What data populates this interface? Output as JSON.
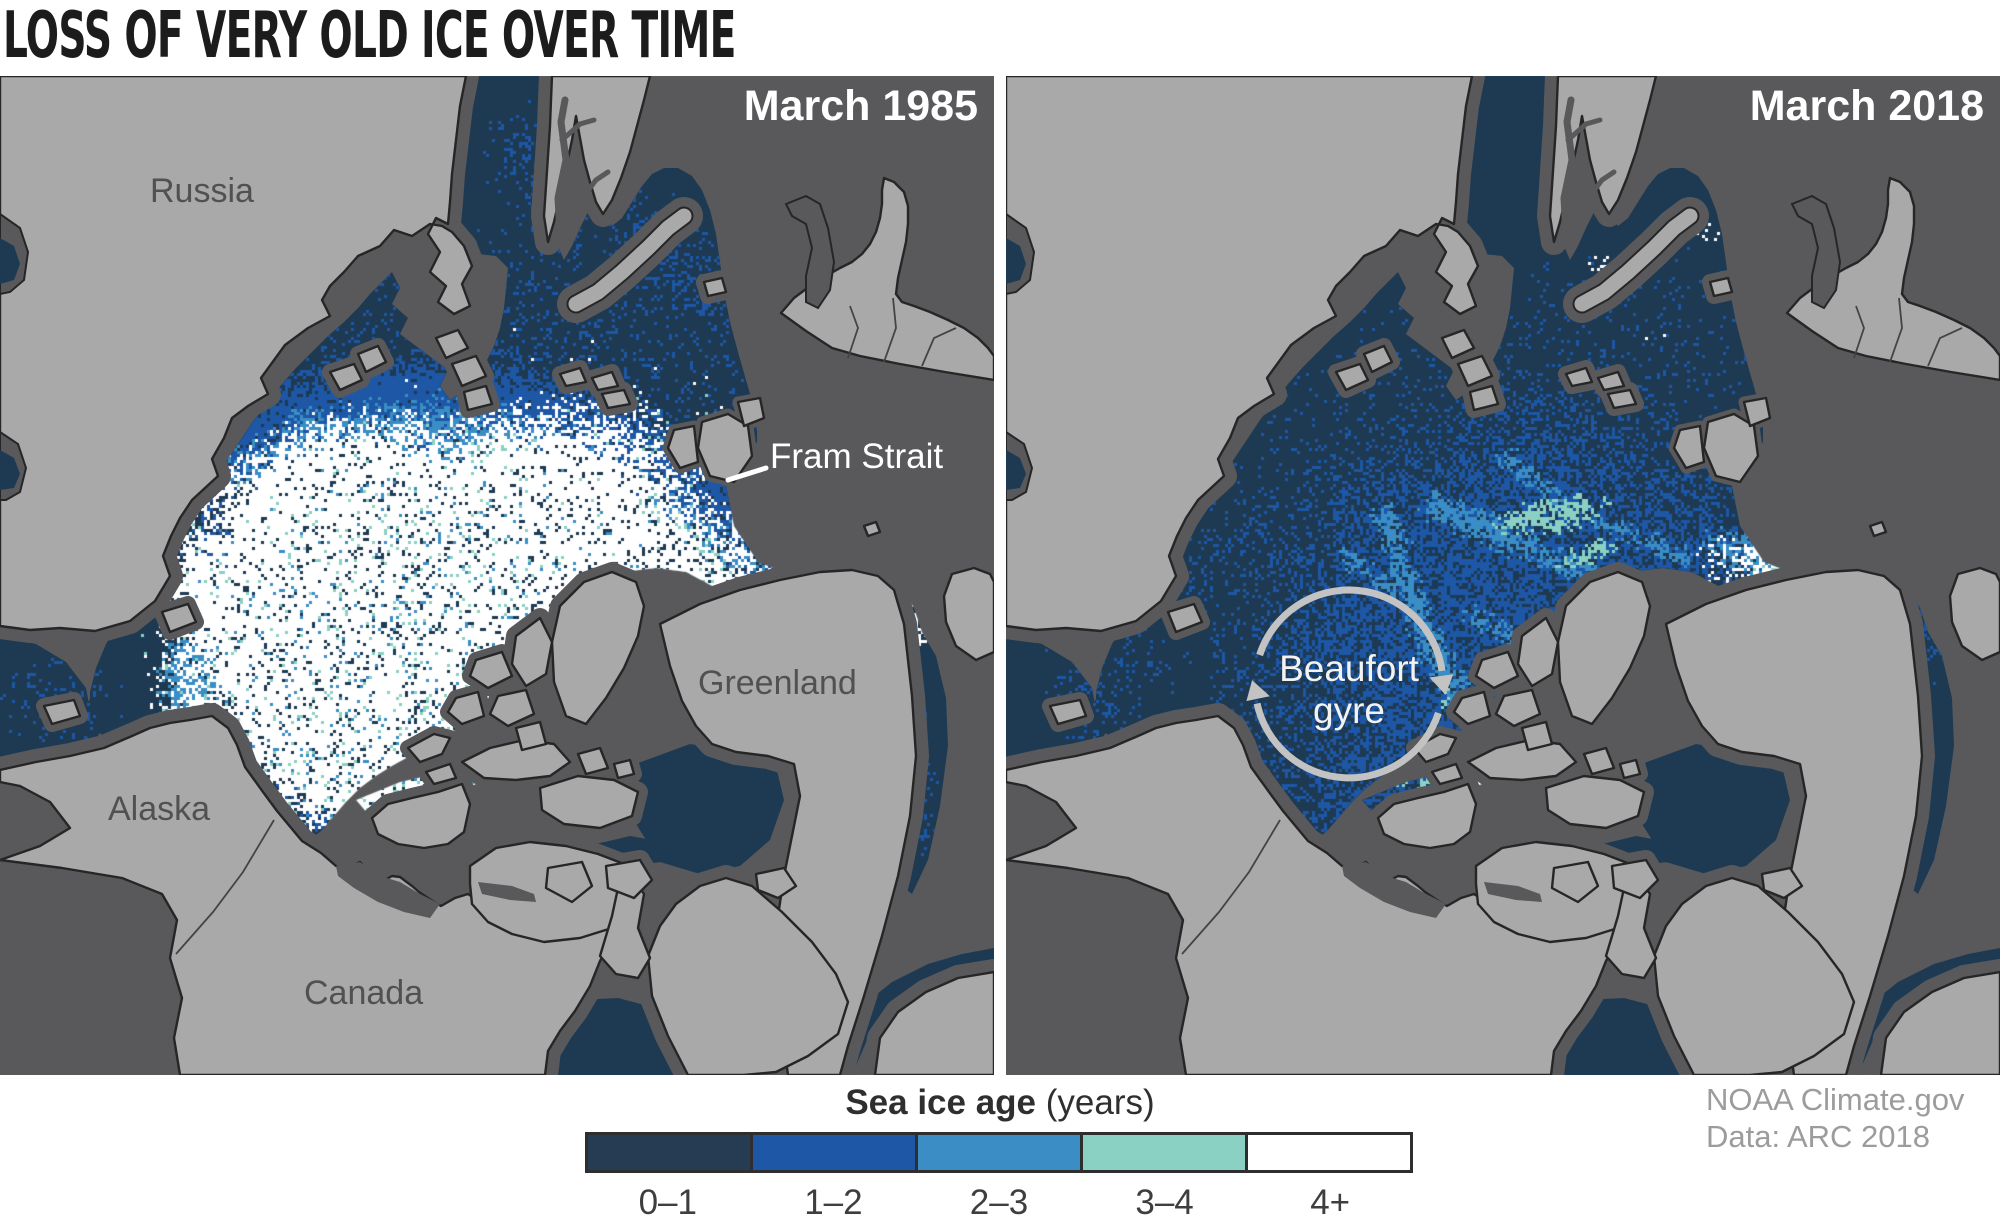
{
  "title": "LOSS OF VERY OLD ICE OVER TIME",
  "panels": [
    {
      "id": "1985",
      "date_label": "March 1985",
      "place_labels": {
        "russia": "Russia",
        "alaska": "Alaska",
        "canada": "Canada",
        "greenland": "Greenland"
      },
      "annotations": {
        "fram_strait": "Fram Strait"
      }
    },
    {
      "id": "2018",
      "date_label": "March 2018",
      "annotations": {
        "beaufort_gyre_line1": "Beaufort",
        "beaufort_gyre_line2": "gyre"
      }
    }
  ],
  "legend": {
    "title_bold": "Sea ice age",
    "title_unit": " (years)",
    "classes": [
      {
        "label": "0–1",
        "color": "#253c52"
      },
      {
        "label": "1–2",
        "color": "#1d57a5"
      },
      {
        "label": "2–3",
        "color": "#3a8ec5"
      },
      {
        "label": "3–4",
        "color": "#8ad0c3"
      },
      {
        "label": "4+",
        "color": "#ffffff"
      }
    ]
  },
  "credits": {
    "line1": "NOAA Climate.gov",
    "line2": "Data: ARC 2018"
  },
  "colors": {
    "land": "#a9a9a9",
    "ocean_open": "#59595b",
    "ice_first_year": "#1e3a53",
    "coastline": "#262626",
    "border_line": "#444444",
    "annotation_light": "#c3c3c3"
  }
}
